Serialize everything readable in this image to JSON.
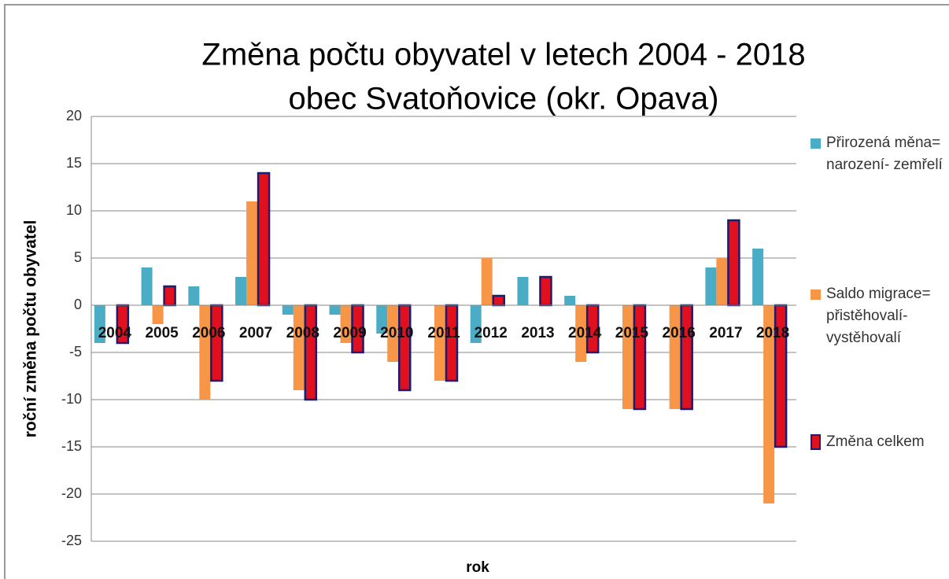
{
  "chart_data": {
    "type": "bar",
    "title": "Změna počtu obyvatel v letech 2004 - 2018",
    "subtitle": "obec Svatoňovice (okr. Opava)",
    "y_label": "roční změna počtu obyvatel",
    "x_label": "rok",
    "categories": [
      "2004",
      "2005",
      "2006",
      "2007",
      "2008",
      "2009",
      "2010",
      "2011",
      "2012",
      "2013",
      "2014",
      "2015",
      "2016",
      "2017",
      "2018"
    ],
    "series": [
      {
        "name": "Přirozená měna= narození- zemřelí",
        "color": "#4bacc6",
        "values": [
          -4,
          4,
          2,
          3,
          -1,
          -1,
          -3,
          0,
          -4,
          3,
          1,
          0,
          0,
          4,
          6
        ]
      },
      {
        "name": "Saldo migrace= přistěhovalí- vystěhovalí",
        "color": "#f79646",
        "values": [
          0,
          -2,
          -10,
          11,
          -9,
          -4,
          -6,
          -8,
          5,
          0,
          -6,
          -11,
          -11,
          5,
          -21
        ]
      },
      {
        "name": "Změna celkem",
        "color": "#e0101e",
        "values": [
          -4,
          2,
          -8,
          14,
          -10,
          -5,
          -9,
          -8,
          1,
          3,
          -5,
          -11,
          -11,
          9,
          -15
        ]
      }
    ],
    "ylim": [
      -25,
      20
    ],
    "yticks": [
      -25,
      -20,
      -15,
      -10,
      -5,
      0,
      5,
      10,
      15,
      20
    ],
    "grid": true,
    "legend": "right"
  }
}
